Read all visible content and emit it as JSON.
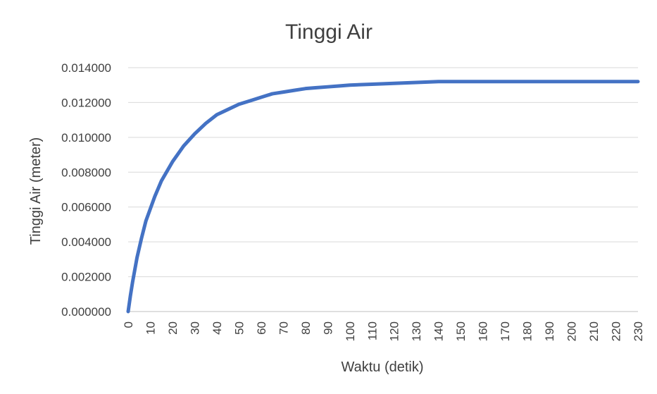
{
  "chart_data": {
    "type": "line",
    "title": "Tinggi Air",
    "xlabel": "Waktu (detik)",
    "ylabel": "Tinggi Air (meter)",
    "xlim": [
      0,
      230
    ],
    "ylim": [
      0,
      0.014
    ],
    "grid": true,
    "legend": "none",
    "x_ticks": [
      "0",
      "10",
      "20",
      "30",
      "40",
      "50",
      "60",
      "70",
      "80",
      "90",
      "100",
      "110",
      "120",
      "130",
      "140",
      "150",
      "160",
      "170",
      "180",
      "190",
      "200",
      "210",
      "220",
      "230"
    ],
    "y_ticks": [
      "0.000000",
      "0.002000",
      "0.004000",
      "0.006000",
      "0.008000",
      "0.010000",
      "0.012000",
      "0.014000"
    ],
    "series": [
      {
        "color": "#4472c4",
        "x": [
          0,
          1,
          2,
          4,
          6,
          8,
          10,
          12,
          15,
          20,
          25,
          30,
          35,
          40,
          45,
          50,
          55,
          60,
          65,
          70,
          75,
          80,
          85,
          90,
          95,
          100,
          110,
          120,
          130,
          140,
          150,
          160,
          170,
          180,
          190,
          200,
          210,
          220,
          230
        ],
        "y": [
          0.0,
          0.0009,
          0.0017,
          0.0031,
          0.0042,
          0.0052,
          0.0059,
          0.0066,
          0.0075,
          0.0086,
          0.0095,
          0.0102,
          0.0108,
          0.0113,
          0.0116,
          0.0119,
          0.0121,
          0.0123,
          0.0125,
          0.0126,
          0.0127,
          0.0128,
          0.01285,
          0.0129,
          0.01295,
          0.013,
          0.01305,
          0.0131,
          0.01315,
          0.0132,
          0.0132,
          0.0132,
          0.0132,
          0.0132,
          0.0132,
          0.0132,
          0.0132,
          0.0132,
          0.0132
        ]
      }
    ]
  }
}
